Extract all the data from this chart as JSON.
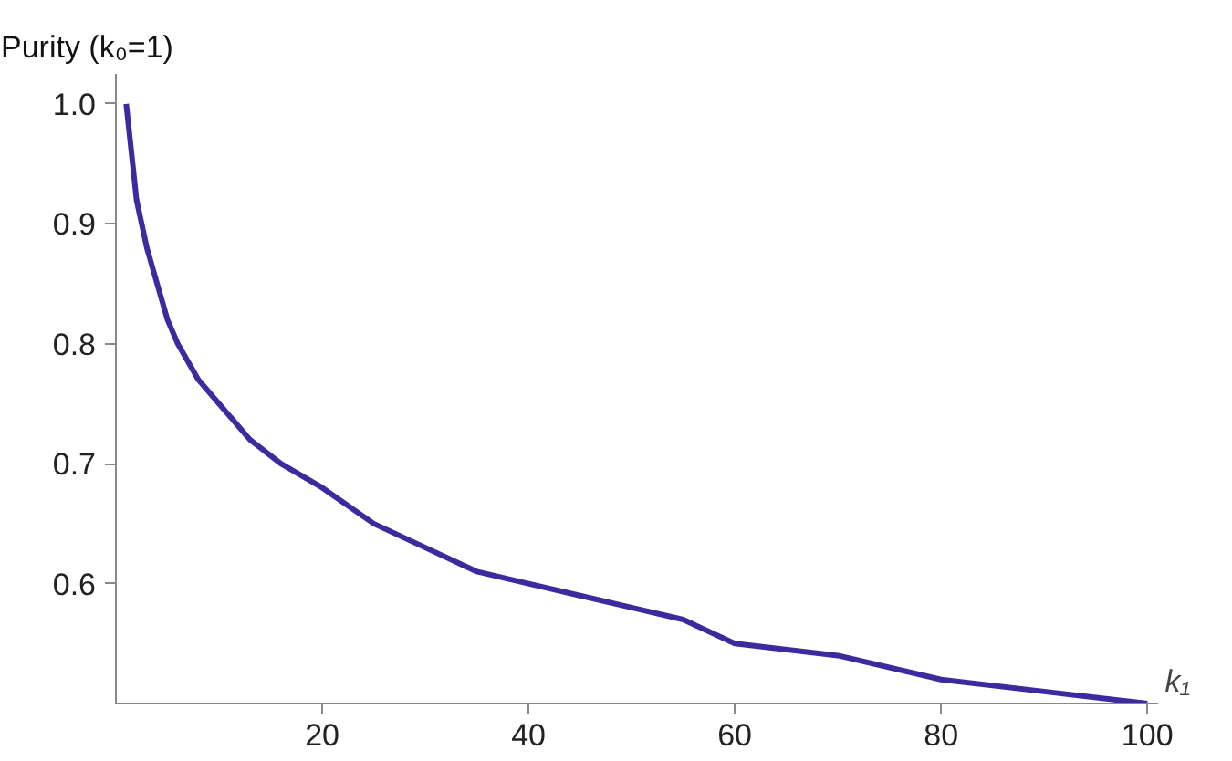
{
  "chart_data": {
    "type": "line",
    "ylabel": "Purity (k₀=1)",
    "xlabel": "k₁",
    "x": [
      1,
      2,
      3,
      4,
      5,
      6,
      8,
      10,
      13,
      16,
      20,
      25,
      30,
      35,
      40,
      45,
      50,
      55,
      60,
      70,
      80,
      90,
      100
    ],
    "series": [
      {
        "color": "#3d2a9e",
        "values": [
          1.0,
          0.92,
          0.88,
          0.85,
          0.82,
          0.8,
          0.77,
          0.75,
          0.72,
          0.7,
          0.68,
          0.65,
          0.63,
          0.61,
          0.6,
          0.59,
          0.58,
          0.57,
          0.55,
          0.54,
          0.52,
          0.51,
          0.5
        ]
      }
    ],
    "xlim": [
      0,
      101
    ],
    "ylim": [
      0.5,
      1.025
    ],
    "xticks": [
      20,
      40,
      60,
      80,
      100
    ],
    "yticks": [
      0.6,
      0.7,
      0.8,
      0.9,
      {
        "value": 1.0,
        "label": "1.0"
      }
    ],
    "grid": false,
    "marker": "none",
    "line_style": "solid"
  }
}
